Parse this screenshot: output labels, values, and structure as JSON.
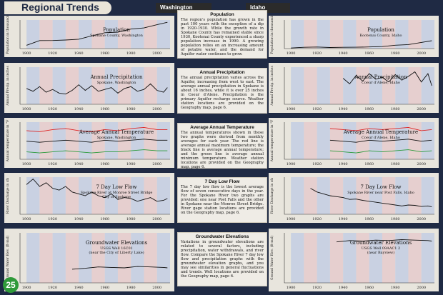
{
  "header": {
    "title": "Regional Trends",
    "left_arrow": "Washington",
    "right_arrow": "Idaho"
  },
  "page_number": "25",
  "descriptions": [
    {
      "title": "Population",
      "text": "The region’s population has grown in the past 100 years with the exception of a dip in 1920-1930. While the growth rate in Spokane County has remained stable since 1930, Kootenai County experienced a sharp population increase in 1990. A growing population relies on an increasing amount of potable water, and the demand for Aquifer water continues to grow."
    },
    {
      "title": "Annual Precipitation",
      "text": "The annual precipitation varies across the Aquifer, increasing from west to east. The average annual precipitation in Spokane is about 16 inches, while it is over 25 inches in Coeur d’Alene. Precipitation is the primary Aquifer recharge source. Weather station locations are provided on the Geography map, page 6."
    },
    {
      "title": "Average Annual Temperature",
      "text": "The annual temperatures shown in these two graphs were derived from monthly averages for each year. The red line is average annual maximum temperature; the black line is average annual temperature; and the green line is average annual minimum temperature. Weather station locations are provided on the Geography map, page 6."
    },
    {
      "title": "7 Day Low Flow",
      "text": "The 7 day low flow is the lowest average flow of seven consecutive days in the year. For the Spokane River two graphs are provided: one near Post Falls and the other in Spokane near the Monroe Street Bridge. River gage station locations are provided on the Geography map, page 6."
    },
    {
      "title": "Groundwater Elevations",
      "text": "Variations in groundwater elevations are related to several factors, including precipitation, water withdrawals, and river flow. Compare the Spokane River 7 day low flow and precipitation graphs with the groundwater elevation graphs, and you may see similarities in general fluctuations and trends. Well locations are provided on the Geography map, page 6."
    }
  ],
  "chart_data": [
    {
      "id": "pop-wa",
      "type": "line",
      "title": "Population",
      "subtitle": "Spokane County, Washington",
      "ylabel": "Population in thousands",
      "xlim": [
        1895,
        2010
      ],
      "x": [
        1900,
        1910,
        1920,
        1930,
        1940,
        1950,
        1960,
        1970,
        1980,
        1990,
        2000,
        2008
      ],
      "series": [
        {
          "values": [
            57,
            140,
            141,
            150,
            164,
            222,
            278,
            287,
            341,
            361,
            418,
            460
          ],
          "color": "#111111"
        }
      ],
      "ylim": [
        0,
        500
      ],
      "xticks": [
        "1900",
        "1920",
        "1940",
        "1960",
        "1980",
        "2000"
      ]
    },
    {
      "id": "pop-id",
      "type": "line",
      "title": "Population",
      "subtitle": "Kootenai County, Idaho",
      "ylabel": "Population in thousands",
      "xlim": [
        1895,
        2010
      ],
      "x": [
        1900,
        1910,
        1920,
        1930,
        1940,
        1950,
        1960,
        1970,
        1980,
        1990,
        2000,
        2008
      ],
      "series": [
        {
          "values": [
            10,
            22,
            28,
            19,
            22,
            24,
            29,
            35,
            59,
            70,
            108,
            137
          ],
          "color": "#111111"
        }
      ],
      "ylim": [
        0,
        500
      ],
      "xticks": [
        "1900",
        "1920",
        "1940",
        "1960",
        "1980",
        "2000"
      ]
    },
    {
      "id": "precip-wa",
      "type": "line",
      "title": "Annual Precipitation",
      "subtitle": "Spokane, Washington",
      "ylabel": "Annual Precip. in inches",
      "xlim": [
        1895,
        2010
      ],
      "x": [
        1900,
        1905,
        1910,
        1915,
        1920,
        1925,
        1930,
        1935,
        1940,
        1945,
        1950,
        1955,
        1960,
        1965,
        1970,
        1975,
        1980,
        1985,
        1990,
        1995,
        2000,
        2005,
        2008
      ],
      "series": [
        {
          "values": [
            17,
            14,
            19,
            13,
            16,
            12,
            11,
            15,
            21,
            15,
            20,
            14,
            16,
            18,
            12,
            17,
            19,
            14,
            16,
            22,
            15,
            13,
            18
          ],
          "color": "#111111"
        }
      ],
      "ylim": [
        0,
        40
      ],
      "xticks": [
        "1900",
        "1920",
        "1940",
        "1960",
        "1980",
        "2000"
      ]
    },
    {
      "id": "precip-id",
      "type": "line",
      "title": "Annual Precipitation",
      "subtitle": "Coeur d’Alene, Idaho",
      "ylabel": "Annual Precip. in inches",
      "xlim": [
        1895,
        2010
      ],
      "x": [
        1940,
        1945,
        1950,
        1955,
        1960,
        1965,
        1970,
        1975,
        1980,
        1985,
        1990,
        1995,
        2000,
        2005,
        2008
      ],
      "series": [
        {
          "values": [
            28,
            22,
            31,
            25,
            33,
            27,
            29,
            24,
            32,
            26,
            30,
            35,
            24,
            33,
            20
          ],
          "color": "#111111"
        }
      ],
      "ylim": [
        0,
        40
      ],
      "xticks": [
        "1900",
        "1920",
        "1940",
        "1960",
        "1980",
        "2000"
      ]
    },
    {
      "id": "temp-wa",
      "type": "line",
      "title": "Average Annual Temperature",
      "subtitle": "Spokane, Washington",
      "ylabel": "Annual temperature in °F",
      "xlim": [
        1895,
        2010
      ],
      "x": [
        1900,
        1910,
        1920,
        1930,
        1940,
        1950,
        1960,
        1970,
        1980,
        1990,
        2000,
        2008
      ],
      "series": [
        {
          "name": "max",
          "values": [
            57,
            56,
            58,
            59,
            57,
            56,
            58,
            57,
            59,
            60,
            58,
            58
          ],
          "color": "#dd2222"
        },
        {
          "name": "avg",
          "values": [
            47,
            46,
            47,
            48,
            47,
            46,
            48,
            47,
            48,
            49,
            48,
            48
          ],
          "color": "#111111"
        },
        {
          "name": "min",
          "values": [
            37,
            36,
            37,
            38,
            37,
            36,
            37,
            37,
            38,
            39,
            38,
            38
          ],
          "color": "#2a9a3a"
        }
      ],
      "ylim": [
        30,
        65
      ],
      "xticks": [
        "1900",
        "1920",
        "1940",
        "1960",
        "1980",
        "2000"
      ]
    },
    {
      "id": "temp-id",
      "type": "line",
      "title": "Average Annual Temperature",
      "subtitle": "Coeur d’Alene, Idaho",
      "ylabel": "Annual temperature in °F",
      "xlim": [
        1895,
        2010
      ],
      "x": [
        1930,
        1940,
        1950,
        1960,
        1970,
        1980,
        1990,
        2000,
        2008
      ],
      "series": [
        {
          "name": "max",
          "values": [
            59,
            58,
            57,
            59,
            58,
            59,
            60,
            57,
            58
          ],
          "color": "#dd2222"
        },
        {
          "name": "avg",
          "values": [
            48,
            47,
            46,
            48,
            47,
            48,
            49,
            47,
            48
          ],
          "color": "#111111"
        },
        {
          "name": "min",
          "values": [
            38,
            37,
            36,
            38,
            37,
            38,
            39,
            37,
            38
          ],
          "color": "#2a9a3a"
        }
      ],
      "ylim": [
        30,
        65
      ],
      "xticks": [
        "1900",
        "1920",
        "1940",
        "1960",
        "1980",
        "2000"
      ]
    },
    {
      "id": "flow-wa",
      "type": "line",
      "title": "7 Day Low Flow",
      "subtitle": "Spokane River at Monroe Street Bridge",
      "subtitle2": "City of Spokane",
      "ylabel": "River Discharge in cfs",
      "xlim": [
        1895,
        2010
      ],
      "x": [
        1900,
        1905,
        1910,
        1915,
        1920,
        1925,
        1930,
        1935,
        1940,
        1945,
        1950,
        1955,
        1960,
        1965,
        1970,
        1975,
        1980,
        1985,
        1990,
        1995,
        2000,
        2005,
        2008
      ],
      "series": [
        {
          "values": [
            1600,
            1900,
            1500,
            1700,
            1400,
            1300,
            1500,
            1200,
            1100,
            1000,
            1200,
            1000,
            900,
            1100,
            800,
            900,
            850,
            700,
            800,
            900,
            700,
            750,
            850
          ],
          "color": "#111111"
        }
      ],
      "ylim": [
        0,
        2000
      ],
      "xticks": [
        "1900",
        "1920",
        "1940",
        "1960",
        "1980",
        "2000"
      ]
    },
    {
      "id": "flow-id",
      "type": "line",
      "title": "7 Day Low Flow",
      "subtitle": "Spokane River near Post Falls, Idaho",
      "ylabel": "River Discharge in cfs",
      "xlim": [
        1895,
        2010
      ],
      "x": [
        1915,
        1920,
        1925,
        1930,
        1935,
        1940,
        1945,
        1950,
        1955,
        1960,
        1965,
        1970,
        1975,
        1980,
        1985,
        1990,
        1995,
        2000,
        2005,
        2008
      ],
      "series": [
        {
          "values": [
            1400,
            1200,
            1100,
            1000,
            950,
            900,
            800,
            820,
            750,
            700,
            650,
            600,
            550,
            500,
            450,
            500,
            480,
            420,
            450,
            400
          ],
          "color": "#111111"
        }
      ],
      "ylim": [
        0,
        2000
      ],
      "xticks": [
        "1900",
        "1920",
        "1940",
        "1960",
        "1980",
        "2000"
      ]
    },
    {
      "id": "gw-wa",
      "type": "line",
      "title": "Groundwater Elevations",
      "subtitle": "USGS Well 16C01",
      "subtitle2": "(near the City of Liberty Lake)",
      "ylabel": "Ground Water Elev. (ft-msl)",
      "xlim": [
        1895,
        2010
      ],
      "x": [
        1935,
        1945,
        1955,
        1965,
        1975,
        1985,
        1995,
        2005,
        2008
      ],
      "series": [
        {
          "values": [
            1980,
            1982,
            1985,
            1984,
            1983,
            1986,
            1985,
            1984,
            1983
          ],
          "color": "#111111"
        }
      ],
      "ylim": [
        1950,
        2060
      ],
      "xticks": [
        "1900",
        "1920",
        "1940",
        "1960",
        "1980",
        "2000"
      ]
    },
    {
      "id": "gw-id",
      "type": "line",
      "title": "Groundwater Elevations",
      "subtitle": "USGS Well 09AAC1 2",
      "subtitle2": "(near Bayview)",
      "ylabel": "Ground Water Elev. (ft-msl)",
      "xlim": [
        1895,
        2010
      ],
      "x": [
        1935,
        1945,
        1955,
        1965,
        1975,
        1985,
        1995,
        2005,
        2008
      ],
      "series": [
        {
          "values": [
            2040,
            2043,
            2042,
            2044,
            2043,
            2045,
            2044,
            2043,
            2042
          ],
          "color": "#111111"
        }
      ],
      "ylim": [
        1950,
        2060
      ],
      "xticks": [
        "1900",
        "1920",
        "1940",
        "1960",
        "1980",
        "2000"
      ]
    }
  ],
  "colors": {
    "band_blue": "#c9d1e2",
    "band_pink": "#e6cfcf",
    "bg": "#1f2a44"
  }
}
